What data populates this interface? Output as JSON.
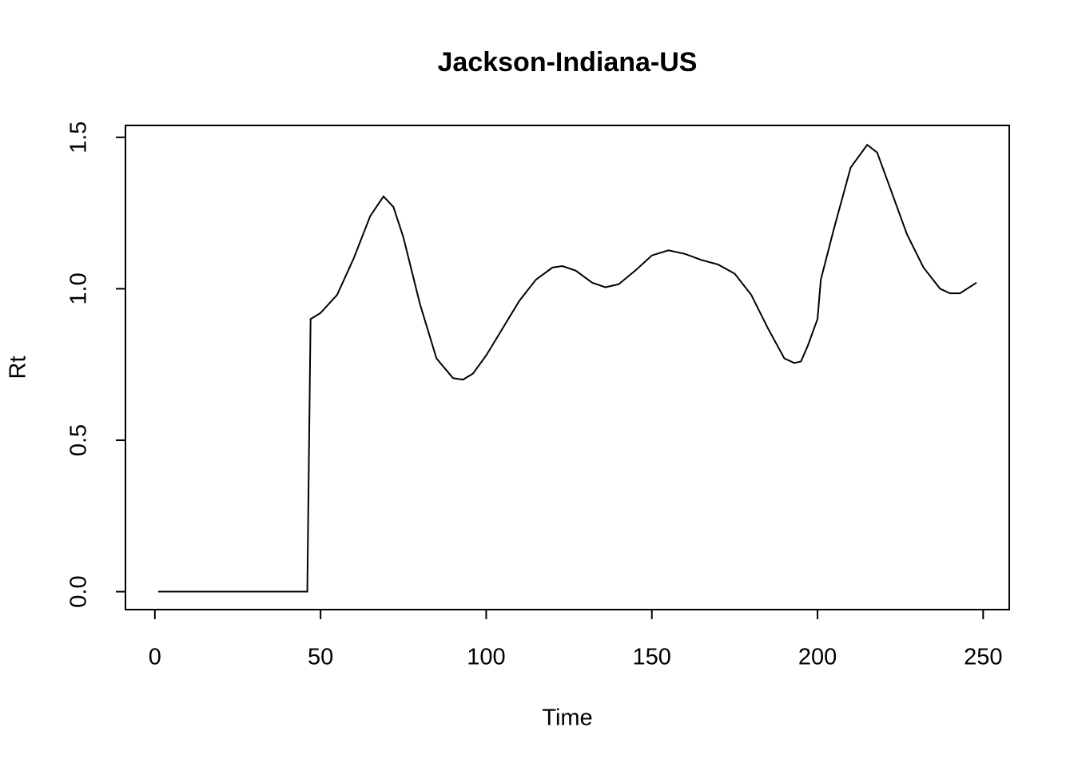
{
  "chart_data": {
    "type": "line",
    "title": "Jackson-Indiana-US",
    "x_label": "Time",
    "y_label": "Rt",
    "color": "#000000",
    "x": [
      1,
      46,
      47,
      50,
      55,
      60,
      65,
      69,
      72,
      75,
      80,
      85,
      90,
      93,
      96,
      100,
      105,
      110,
      115,
      120,
      123,
      127,
      132,
      136,
      140,
      145,
      150,
      155,
      160,
      165,
      170,
      175,
      180,
      185,
      190,
      193,
      195,
      197,
      200,
      201,
      205,
      210,
      215,
      218,
      222,
      227,
      232,
      237,
      240,
      243,
      248
    ],
    "values": [
      0,
      0,
      0.9,
      0.92,
      0.98,
      1.1,
      1.24,
      1.305,
      1.27,
      1.17,
      0.95,
      0.77,
      0.705,
      0.7,
      0.72,
      0.78,
      0.87,
      0.96,
      1.03,
      1.07,
      1.075,
      1.06,
      1.02,
      1.005,
      1.015,
      1.06,
      1.11,
      1.127,
      1.115,
      1.095,
      1.08,
      1.05,
      0.98,
      0.87,
      0.77,
      0.755,
      0.76,
      0.81,
      0.9,
      1.03,
      1.2,
      1.4,
      1.475,
      1.45,
      1.33,
      1.18,
      1.07,
      1.0,
      0.985,
      0.985,
      1.02
    ],
    "xlim": [
      -8.88,
      257.88
    ],
    "ylim": [
      -0.0592,
      1.5392
    ],
    "xticks": [
      0,
      50,
      100,
      150,
      200,
      250
    ],
    "yticks": [
      {
        "value": 0,
        "label": "0.0"
      },
      0.5,
      {
        "value": 1,
        "label": "1.0"
      },
      1.5
    ]
  }
}
